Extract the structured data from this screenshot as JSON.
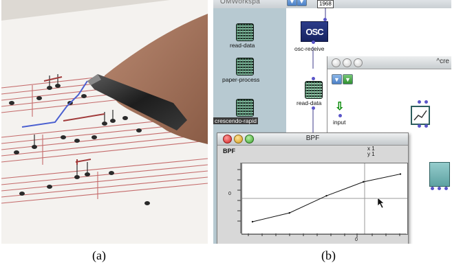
{
  "captions": {
    "a": "(a)",
    "b": "(b)"
  },
  "workspace": {
    "title": "OMWorkspa",
    "icons": [
      {
        "label": "read-data"
      },
      {
        "label": "paper-process"
      },
      {
        "label": "crescendo-rapid"
      }
    ]
  },
  "patch": {
    "value_box": "1968",
    "osc_icon_text": "OSC",
    "osc_label": "osc-receive",
    "read_label": "read-data",
    "input_label": "input",
    "window_title": "^cre"
  },
  "bpf_window": {
    "title": "BPF",
    "name": "BPF",
    "x_readout": "x 1",
    "y_readout": "y 1",
    "y_axis_label": "0",
    "x_axis_label": "0"
  },
  "chart_data": {
    "type": "line",
    "x": [
      0,
      1,
      2,
      3,
      4
    ],
    "y": [
      0.08,
      0.25,
      0.58,
      0.85,
      1.0
    ],
    "xlim": [
      0,
      4
    ],
    "ylim": [
      0,
      1.1
    ],
    "grid": false
  },
  "colors": {
    "pen_stroke": "#4a5fd0",
    "osc_box": "#1e2d72",
    "selection": "#3b3b3b",
    "port": "#5a55c8",
    "teal": "#6fb0b0"
  }
}
